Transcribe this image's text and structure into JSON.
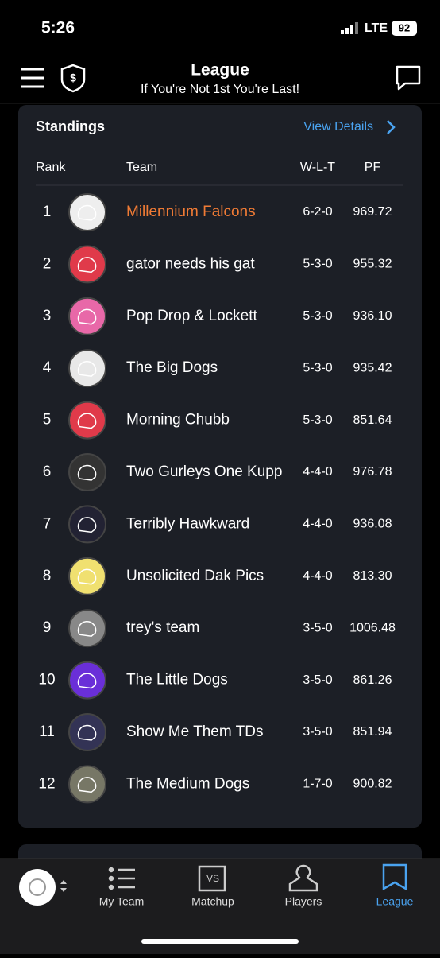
{
  "status_bar": {
    "time": "5:26",
    "network": "LTE",
    "battery": "92"
  },
  "header": {
    "title": "League",
    "subtitle": "If You're Not 1st You're Last!"
  },
  "standings": {
    "title": "Standings",
    "link": "View Details",
    "columns": [
      "Rank",
      "Team",
      "W-L-T",
      "PF"
    ],
    "rows": [
      [
        "1",
        "Millennium Falcons",
        "6-2-0",
        "969.72"
      ],
      [
        "2",
        "gator needs his gat",
        "5-3-0",
        "955.32"
      ],
      [
        "3",
        "Pop Drop & Lockett",
        "5-3-0",
        "936.10"
      ],
      [
        "4",
        "The Big Dogs",
        "5-3-0",
        "935.42"
      ],
      [
        "5",
        "Morning Chubb",
        "5-3-0",
        "851.64"
      ],
      [
        "6",
        "Two Gurleys One Kupp",
        "4-4-0",
        "976.78"
      ],
      [
        "7",
        "Terribly Hawkward",
        "4-4-0",
        "936.08"
      ],
      [
        "8",
        "Unsolicited Dak Pics",
        "4-4-0",
        "813.30"
      ],
      [
        "9",
        "trey's team",
        "3-5-0",
        "1006.48"
      ],
      [
        "10",
        "The Little Dogs",
        "3-5-0",
        "861.26"
      ],
      [
        "11",
        "Show Me Them TDs",
        "3-5-0",
        "851.94"
      ],
      [
        "12",
        "The Medium Dogs",
        "1-7-0",
        "900.82"
      ]
    ]
  },
  "nav": {
    "items": [
      "My Team",
      "Matchup",
      "Players",
      "League"
    ]
  }
}
